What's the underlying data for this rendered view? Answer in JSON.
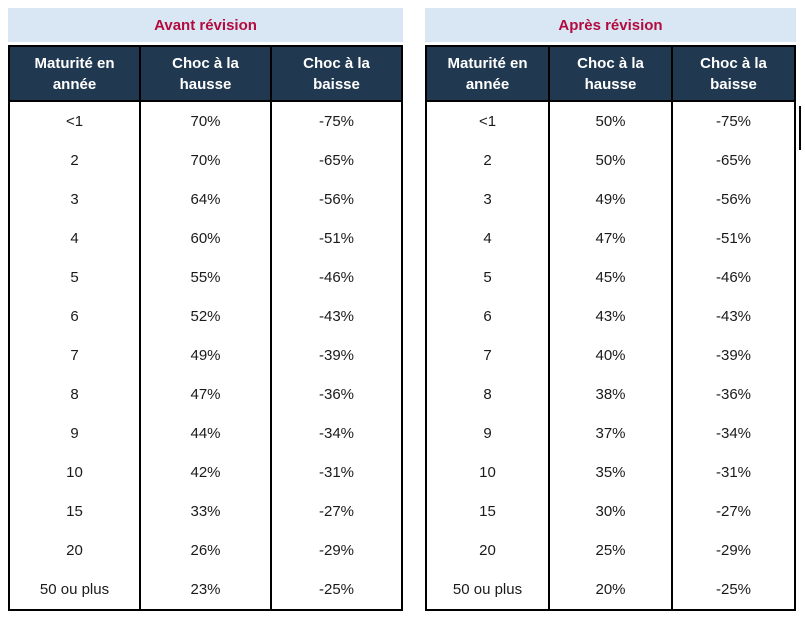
{
  "colors": {
    "title_text": "#b30b3e",
    "title_band_bg": "#d9e7f5",
    "header_bg": "#213950",
    "header_text": "#ffffff",
    "body_text": "#1a1a1a",
    "border": "#000000",
    "page_bg": "#ffffff"
  },
  "tables": [
    {
      "title": "Avant révision",
      "headers": [
        "Maturité en année",
        "Choc à la hausse",
        "Choc à la baisse"
      ],
      "rows": [
        [
          "<1",
          "70%",
          "-75%"
        ],
        [
          "2",
          "70%",
          "-65%"
        ],
        [
          "3",
          "64%",
          "-56%"
        ],
        [
          "4",
          "60%",
          "-51%"
        ],
        [
          "5",
          "55%",
          "-46%"
        ],
        [
          "6",
          "52%",
          "-43%"
        ],
        [
          "7",
          "49%",
          "-39%"
        ],
        [
          "8",
          "47%",
          "-36%"
        ],
        [
          "9",
          "44%",
          "-34%"
        ],
        [
          "10",
          "42%",
          "-31%"
        ],
        [
          "15",
          "33%",
          "-27%"
        ],
        [
          "20",
          "26%",
          "-29%"
        ],
        [
          "50 ou plus",
          "23%",
          "-25%"
        ]
      ]
    },
    {
      "title": "Après révision",
      "headers": [
        "Maturité en année",
        "Choc à la hausse",
        "Choc à la baisse"
      ],
      "rows": [
        [
          "<1",
          "50%",
          "-75%"
        ],
        [
          "2",
          "50%",
          "-65%"
        ],
        [
          "3",
          "49%",
          "-56%"
        ],
        [
          "4",
          "47%",
          "-51%"
        ],
        [
          "5",
          "45%",
          "-46%"
        ],
        [
          "6",
          "43%",
          "-43%"
        ],
        [
          "7",
          "40%",
          "-39%"
        ],
        [
          "8",
          "38%",
          "-36%"
        ],
        [
          "9",
          "37%",
          "-34%"
        ],
        [
          "10",
          "35%",
          "-31%"
        ],
        [
          "15",
          "30%",
          "-27%"
        ],
        [
          "20",
          "25%",
          "-29%"
        ],
        [
          "50 ou plus",
          "20%",
          "-25%"
        ]
      ]
    }
  ]
}
